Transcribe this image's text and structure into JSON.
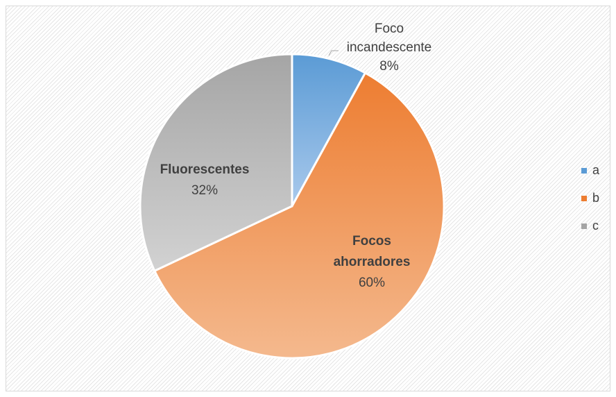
{
  "chart_data": {
    "type": "pie",
    "title": "",
    "categories": [
      "a",
      "b",
      "c"
    ],
    "values": [
      8,
      60,
      32
    ],
    "slice_labels": [
      {
        "name_lines": [
          "Foco",
          "incandescente"
        ],
        "percent": "8%",
        "bold": false
      },
      {
        "name_lines": [
          "Focos",
          "ahorradores"
        ],
        "percent": "60%",
        "bold": true
      },
      {
        "name_lines": [
          "Fluorescentes"
        ],
        "percent": "32%",
        "bold": true
      }
    ],
    "colors": [
      "#5b9bd5",
      "#ed7d31",
      "#a5a5a5"
    ],
    "legend": {
      "position": "right",
      "entries": [
        "a",
        "b",
        "c"
      ]
    }
  }
}
